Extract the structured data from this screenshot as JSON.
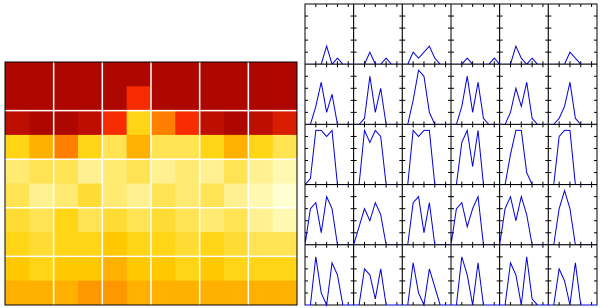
{
  "chart_data": [
    {
      "type": "heatmap",
      "xlim": [
        0,
        6
      ],
      "ylim": [
        0,
        5
      ],
      "xticks": [
        1,
        2,
        3,
        4,
        5
      ],
      "yticks": [
        1,
        2,
        3,
        4
      ],
      "grid": true,
      "zlim": [
        0,
        1
      ],
      "colors": [
        "#a00000",
        "#ff3000",
        "#ffd000",
        "#ffffd0"
      ],
      "values": [
        [
          0.05,
          0.05,
          0.05,
          0.05,
          0.05,
          0.05,
          0.05,
          0.05,
          0.05,
          0.05,
          0.05,
          0.05
        ],
        [
          0.05,
          0.05,
          0.05,
          0.05,
          0.05,
          0.3,
          0.05,
          0.05,
          0.05,
          0.05,
          0.05,
          0.05
        ],
        [
          0.1,
          0.05,
          0.05,
          0.1,
          0.3,
          0.7,
          0.5,
          0.3,
          0.1,
          0.05,
          0.1,
          0.2
        ],
        [
          0.7,
          0.6,
          0.5,
          0.7,
          0.8,
          0.6,
          0.8,
          0.8,
          0.7,
          0.6,
          0.7,
          0.8
        ],
        [
          0.85,
          0.8,
          0.8,
          0.9,
          0.85,
          0.8,
          0.9,
          0.85,
          0.9,
          0.8,
          0.9,
          0.95
        ],
        [
          0.8,
          0.9,
          0.85,
          0.75,
          0.85,
          0.9,
          0.8,
          0.85,
          0.8,
          0.9,
          0.95,
          1
        ],
        [
          0.75,
          0.8,
          0.7,
          0.8,
          0.75,
          0.8,
          0.75,
          0.8,
          0.85,
          0.8,
          0.9,
          0.95
        ],
        [
          0.7,
          0.75,
          0.7,
          0.7,
          0.65,
          0.7,
          0.7,
          0.75,
          0.7,
          0.75,
          0.8,
          0.8
        ],
        [
          0.65,
          0.7,
          0.65,
          0.65,
          0.6,
          0.65,
          0.65,
          0.7,
          0.65,
          0.7,
          0.7,
          0.7
        ],
        [
          0.6,
          0.6,
          0.6,
          0.55,
          0.55,
          0.6,
          0.6,
          0.6,
          0.6,
          0.6,
          0.6,
          0.6
        ]
      ]
    },
    {
      "type": "small-multiples",
      "rows": 5,
      "cols": 6,
      "color": "#0000dd",
      "xlim": [
        0,
        9
      ],
      "ylim": [
        0,
        10
      ],
      "xticks": [
        2,
        4,
        6,
        8
      ],
      "yticks": [
        2,
        4,
        6,
        8
      ],
      "panels": [
        {
          "values": [
            0,
            0,
            0,
            0,
            3,
            0,
            1,
            0,
            0,
            0
          ]
        },
        {
          "values": [
            0,
            0,
            0,
            2,
            0,
            0,
            1,
            0,
            0,
            0
          ]
        },
        {
          "values": [
            0,
            0,
            2,
            1,
            2,
            3,
            1,
            0,
            0,
            0
          ]
        },
        {
          "values": [
            0,
            0,
            0,
            1,
            0,
            0,
            0,
            0,
            1,
            0
          ]
        },
        {
          "values": [
            0,
            0,
            0,
            3,
            1,
            0,
            1,
            0,
            0,
            0
          ]
        },
        {
          "values": [
            0,
            0,
            0,
            0,
            2,
            1,
            0,
            0,
            0,
            0
          ]
        },
        {
          "values": [
            0,
            0,
            3,
            7,
            2,
            5,
            0,
            0,
            0,
            0
          ]
        },
        {
          "values": [
            0,
            0,
            1,
            8,
            2,
            6,
            0,
            0,
            0,
            0
          ]
        },
        {
          "values": [
            0,
            0,
            4,
            9,
            8,
            2,
            0,
            0,
            0,
            0
          ]
        },
        {
          "values": [
            0,
            0,
            3,
            8,
            2,
            7,
            1,
            0,
            0,
            0
          ]
        },
        {
          "values": [
            0,
            0,
            2,
            6,
            3,
            7,
            1,
            0,
            0,
            0
          ]
        },
        {
          "values": [
            0,
            0,
            1,
            3,
            7,
            1,
            0,
            0,
            0,
            0
          ]
        },
        {
          "values": [
            0,
            1,
            9,
            9,
            8,
            9,
            0,
            0,
            0,
            0
          ]
        },
        {
          "values": [
            0,
            0,
            9,
            7,
            9,
            8,
            0,
            0,
            0,
            0
          ]
        },
        {
          "values": [
            0,
            0,
            9,
            8,
            9,
            9,
            0,
            0,
            0,
            0
          ]
        },
        {
          "values": [
            0,
            0,
            7,
            9,
            3,
            9,
            0,
            0,
            0,
            0
          ]
        },
        {
          "values": [
            0,
            0,
            5,
            9,
            9,
            2,
            0,
            0,
            0,
            0
          ]
        },
        {
          "values": [
            0,
            0,
            8,
            9,
            9,
            0,
            0,
            0,
            0,
            0
          ]
        },
        {
          "values": [
            0,
            6,
            7,
            2,
            8,
            6,
            0,
            0,
            0,
            0
          ]
        },
        {
          "values": [
            0,
            3,
            6,
            4,
            7,
            5,
            0,
            0,
            0,
            0
          ]
        },
        {
          "values": [
            0,
            0,
            7,
            8,
            2,
            7,
            0,
            0,
            0,
            0
          ]
        },
        {
          "values": [
            0,
            6,
            7,
            3,
            6,
            8,
            0,
            0,
            0,
            0
          ]
        },
        {
          "values": [
            0,
            6,
            8,
            4,
            8,
            5,
            0,
            0,
            0,
            0
          ]
        },
        {
          "values": [
            0,
            0,
            6,
            9,
            6,
            0,
            0,
            0,
            0,
            0
          ]
        },
        {
          "values": [
            0,
            0,
            8,
            2,
            0,
            7,
            5,
            0,
            0,
            0
          ]
        },
        {
          "values": [
            0,
            0,
            6,
            5,
            1,
            6,
            0,
            0,
            0,
            0
          ]
        },
        {
          "values": [
            0,
            0,
            7,
            2,
            0,
            6,
            3,
            0,
            0,
            0
          ]
        },
        {
          "values": [
            0,
            0,
            8,
            5,
            0,
            7,
            0,
            0,
            0,
            0
          ]
        },
        {
          "values": [
            0,
            0,
            7,
            5,
            0,
            8,
            1,
            0,
            0,
            0
          ]
        },
        {
          "values": [
            0,
            0,
            6,
            4,
            0,
            7,
            0,
            0,
            0,
            0
          ]
        }
      ]
    }
  ]
}
